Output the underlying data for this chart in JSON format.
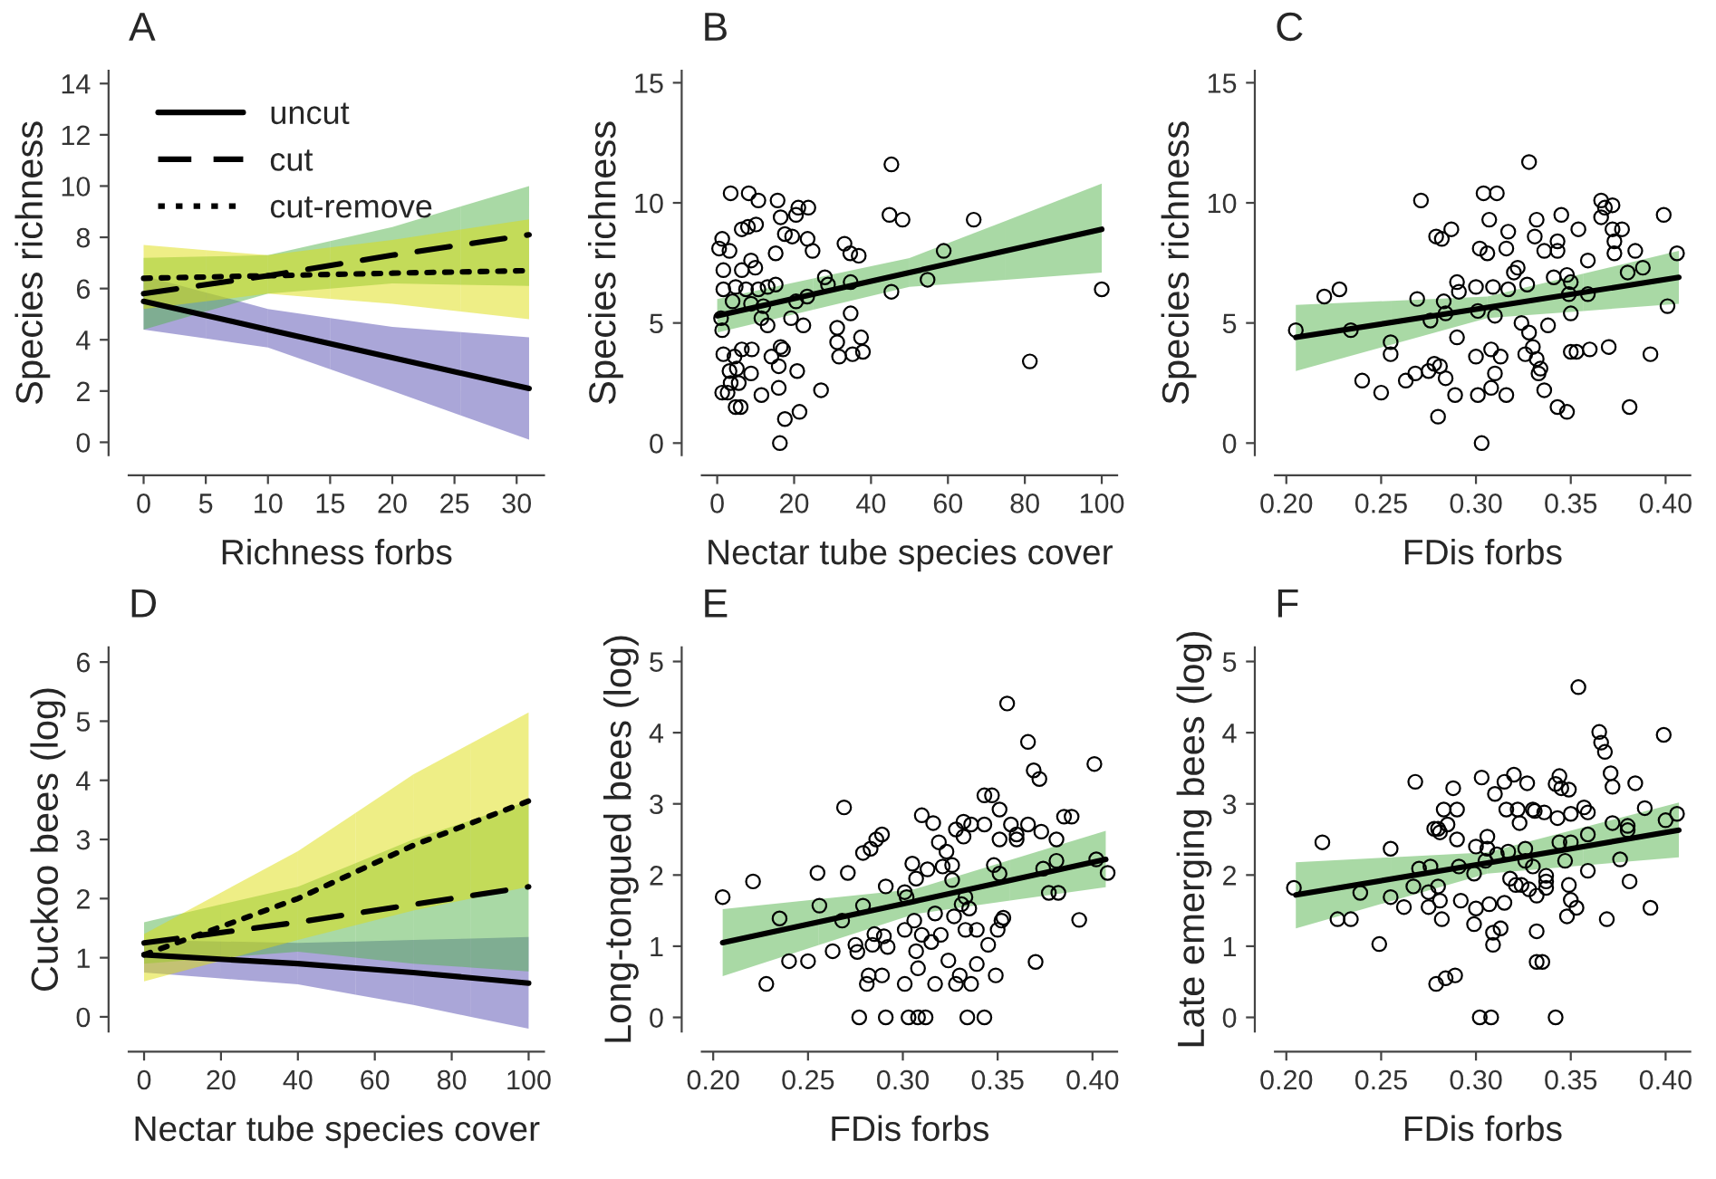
{
  "chart_data": [
    {
      "type": "line",
      "title": "A",
      "xlabel": "Richness forbs",
      "ylabel": "Species richness",
      "xlim": [
        -1.2,
        32.2
      ],
      "xticks": [
        0,
        5,
        10,
        15,
        20,
        25,
        30
      ],
      "ylim": [
        -0.5,
        14.5
      ],
      "yticks": [
        0,
        2,
        4,
        6,
        8,
        10,
        12,
        14
      ],
      "grid": false,
      "legend": "top left",
      "series": [
        {
          "name": "uncut",
          "line_style": "solid",
          "color": "#000000",
          "colors": [
            "#554db1",
            "#554db1",
            "#554db1",
            "#554db1"
          ],
          "x": [
            0,
            10,
            20,
            31
          ],
          "values": [
            5.5,
            4.4,
            3.3,
            2.1
          ],
          "lower": [
            4.4,
            3.7,
            2.0,
            0.1
          ],
          "upper": [
            6.5,
            5.2,
            4.5,
            4.1
          ]
        },
        {
          "name": "cut",
          "line_style": "dashed",
          "color": "#000000",
          "colors": [
            "#53b34b",
            "#53b34b",
            "#53b34b",
            "#53b34b"
          ],
          "x": [
            0,
            10,
            20,
            31
          ],
          "values": [
            5.8,
            6.5,
            7.3,
            8.1
          ],
          "lower": [
            4.4,
            5.8,
            6.2,
            6.1
          ],
          "upper": [
            7.2,
            7.3,
            8.4,
            10.0
          ]
        },
        {
          "name": "cut-remove",
          "line_style": "dotted",
          "color": "#000000",
          "colors": [
            "#dddd0d",
            "#dddd0d",
            "#dddd0d",
            "#dddd0d"
          ],
          "x": [
            0,
            10,
            20,
            31
          ],
          "values": [
            6.4,
            6.5,
            6.6,
            6.7
          ],
          "lower": [
            5.2,
            5.8,
            5.4,
            4.8
          ],
          "upper": [
            7.7,
            7.3,
            7.9,
            8.7
          ]
        }
      ]
    },
    {
      "type": "scatter",
      "title": "B",
      "xlabel": "Nectar tube species cover",
      "ylabel": "Species richness",
      "xlim": [
        -4,
        104
      ],
      "xticks": [
        0,
        20,
        40,
        60,
        80,
        100
      ],
      "ylim": [
        -0.5,
        15.5
      ],
      "yticks": [
        0,
        5,
        10,
        15
      ],
      "grid": false,
      "series": [
        {
          "type": "scatter",
          "marker": "circle",
          "color": "#000000",
          "x": [
            3.5,
            8.2,
            10.7,
            15.7,
            21.1,
            23.7,
            20.5,
            16.5,
            45.3,
            44.8,
            48.2,
            66.7,
            58.9,
            54.7,
            45.3,
            100,
            81.3,
            33.1,
            34.6,
            36.8,
            23.5,
            24.8,
            19.5,
            17.6,
            6.4,
            8,
            10.1,
            1.3,
            0.5,
            3.2,
            15.2,
            8.8,
            9.9,
            6.4,
            1.6,
            4.8,
            7.5,
            10.7,
            13.1,
            15.2,
            28,
            28.8,
            34.7,
            1.6,
            4,
            8.8,
            12,
            20.5,
            23.4,
            1,
            1.3,
            11.5,
            13.1,
            19.2,
            22.4,
            31.2,
            34.7,
            31.2,
            31.7,
            35.2,
            37.4,
            37.9,
            1.6,
            4.5,
            6.4,
            9,
            14.1,
            16.5,
            17.1,
            16,
            20.8,
            3.2,
            5.1,
            8.8,
            3.5,
            5.6,
            1.3,
            2.7,
            11.5,
            16,
            27,
            4.8,
            6.1,
            17.6,
            21.4,
            16.3
          ],
          "values": [
            10.4,
            10.4,
            10.1,
            10.1,
            9.8,
            9.8,
            9.5,
            9.4,
            11.6,
            9.5,
            9.3,
            9.3,
            8.0,
            6.8,
            6.3,
            6.4,
            3.4,
            8.3,
            7.9,
            7.8,
            8.5,
            8.0,
            8.6,
            8.7,
            8.9,
            9.0,
            9.1,
            8.5,
            8.1,
            8.0,
            7.9,
            7.6,
            7.3,
            7.2,
            7.2,
            6.5,
            6.4,
            6.4,
            6.5,
            6.6,
            6.9,
            6.6,
            6.7,
            6.4,
            5.9,
            5.8,
            5.7,
            5.9,
            6.1,
            5.2,
            4.7,
            5.2,
            4.9,
            5.2,
            4.9,
            4.8,
            5.4,
            4.2,
            3.6,
            3.7,
            4.4,
            3.8,
            3.7,
            3.6,
            3.9,
            3.9,
            3.6,
            4.0,
            3.9,
            3.2,
            3.0,
            3.0,
            3.1,
            2.9,
            2.5,
            2.5,
            2.1,
            2.1,
            2.0,
            2.3,
            2.2,
            1.5,
            1.5,
            1.0,
            1.3,
            0
          ]
        },
        {
          "type": "line",
          "line_style": "solid",
          "color": "#000000",
          "colors": [
            "#53b34b",
            "#53b34b",
            "#53b34b"
          ],
          "x": [
            0,
            50,
            100
          ],
          "values": [
            5.3,
            7.1,
            8.9
          ],
          "lower": [
            4.6,
            6.5,
            7.1
          ],
          "upper": [
            6.0,
            7.7,
            10.8
          ]
        }
      ]
    },
    {
      "type": "scatter",
      "title": "C",
      "xlabel": "FDis forbs",
      "ylabel": "Species richness",
      "xlim": [
        0.194,
        0.413
      ],
      "xticks": [
        {
          "value": 0.2,
          "label": "0.20"
        },
        {
          "value": 0.25,
          "label": "0.25"
        },
        {
          "value": 0.3,
          "label": "0.30"
        },
        {
          "value": 0.35,
          "label": "0.35"
        },
        {
          "value": 0.4,
          "label": "0.40"
        }
      ],
      "ylim": [
        -0.5,
        15.5
      ],
      "yticks": [
        0,
        5,
        10,
        15
      ],
      "grid": false,
      "series": [
        {
          "type": "scatter",
          "marker": "circle",
          "color": "#000000",
          "x": [
            0.205,
            0.22,
            0.228,
            0.234,
            0.24,
            0.25,
            0.255,
            0.255,
            0.263,
            0.268,
            0.269,
            0.271,
            0.275,
            0.276,
            0.278,
            0.281,
            0.28,
            0.279,
            0.282,
            0.287,
            0.283,
            0.284,
            0.289,
            0.29,
            0.29,
            0.291,
            0.284,
            0.3,
            0.302,
            0.301,
            0.3,
            0.301,
            0.303,
            0.304,
            0.311,
            0.307,
            0.306,
            0.308,
            0.308,
            0.31,
            0.309,
            0.31,
            0.313,
            0.317,
            0.316,
            0.316,
            0.317,
            0.32,
            0.322,
            0.324,
            0.326,
            0.327,
            0.328,
            0.328,
            0.33,
            0.332,
            0.331,
            0.332,
            0.333,
            0.334,
            0.336,
            0.336,
            0.338,
            0.341,
            0.343,
            0.343,
            0.345,
            0.343,
            0.348,
            0.348,
            0.349,
            0.35,
            0.35,
            0.35,
            0.353,
            0.354,
            0.359,
            0.36,
            0.359,
            0.366,
            0.368,
            0.372,
            0.366,
            0.37,
            0.372,
            0.373,
            0.373,
            0.377,
            0.38,
            0.381,
            0.384,
            0.388,
            0.392,
            0.399,
            0.401,
            0.406
          ],
          "values": [
            4.7,
            6.1,
            6.4,
            4.7,
            2.6,
            2.1,
            4.2,
            3.7,
            2.6,
            2.9,
            6.0,
            10.1,
            3.0,
            5.1,
            3.3,
            3.2,
            1.1,
            8.6,
            8.5,
            8.9,
            5.9,
            2.7,
            2.0,
            4.4,
            6.7,
            6.3,
            5.4,
            6.5,
            8.1,
            5.5,
            3.6,
            2.0,
            0,
            10.4,
            10.4,
            9.3,
            7.9,
            3.9,
            2.3,
            2.9,
            6.5,
            5.3,
            3.6,
            8.8,
            8.1,
            2.0,
            6.4,
            7.1,
            7.3,
            5.0,
            3.7,
            6.6,
            4.6,
            11.7,
            4.0,
            9.3,
            8.6,
            3.5,
            2.9,
            3.1,
            2.2,
            8.0,
            4.9,
            6.9,
            8.4,
            8.0,
            9.5,
            1.5,
            1.3,
            7.0,
            6.2,
            6.7,
            5.4,
            3.8,
            3.8,
            8.9,
            7.6,
            3.9,
            6.2,
            10.1,
            9.8,
            9.9,
            9.4,
            4.0,
            8.9,
            7.9,
            8.4,
            8.9,
            7.1,
            1.5,
            8.0,
            7.3,
            3.7,
            9.5,
            5.7,
            7.9
          ]
        },
        {
          "type": "line",
          "line_style": "solid",
          "color": "#000000",
          "colors": [
            "#53b34b",
            "#53b34b",
            "#53b34b"
          ],
          "x": [
            0.205,
            0.306,
            0.407
          ],
          "values": [
            4.4,
            5.65,
            6.9
          ],
          "lower": [
            3.0,
            5.2,
            5.8
          ],
          "upper": [
            5.75,
            6.1,
            8.0
          ]
        }
      ]
    },
    {
      "type": "line",
      "title": "D",
      "xlabel": "Nectar tube species cover",
      "ylabel": "Cuckoo bees (log)",
      "xlim": [
        -4,
        104
      ],
      "xticks": [
        0,
        20,
        40,
        60,
        80,
        100
      ],
      "ylim": [
        -0.25,
        6.25
      ],
      "yticks": [
        0,
        1,
        2,
        3,
        4,
        5,
        6
      ],
      "grid": false,
      "series": [
        {
          "line_style": "solid",
          "color": "#000000",
          "colors": [
            "#554db1",
            "#554db1",
            "#554db1",
            "#554db1"
          ],
          "x": [
            0,
            40,
            70,
            100
          ],
          "values": [
            1.05,
            0.9,
            0.75,
            0.57
          ],
          "lower": [
            0.75,
            0.55,
            0.2,
            -0.2
          ],
          "upper": [
            1.3,
            1.25,
            1.3,
            1.35
          ]
        },
        {
          "line_style": "dashed",
          "color": "#000000",
          "colors": [
            "#53b34b",
            "#53b34b",
            "#53b34b",
            "#53b34b"
          ],
          "x": [
            0,
            40,
            70,
            100
          ],
          "values": [
            1.25,
            1.6,
            1.9,
            2.2
          ],
          "lower": [
            0.9,
            1.1,
            0.9,
            0.77
          ],
          "upper": [
            1.6,
            2.2,
            3.0,
            3.65
          ]
        },
        {
          "line_style": "dotted",
          "color": "#000000",
          "colors": [
            "#dddd0d",
            "#dddd0d",
            "#dddd0d",
            "#dddd0d"
          ],
          "x": [
            0,
            40,
            70,
            100
          ],
          "values": [
            1.05,
            2.0,
            2.9,
            3.65
          ],
          "lower": [
            0.6,
            1.3,
            1.8,
            2.2
          ],
          "upper": [
            1.4,
            2.8,
            4.1,
            5.15
          ]
        }
      ]
    },
    {
      "type": "scatter",
      "title": "E",
      "xlabel": "FDis forbs",
      "ylabel": "Long-tongued bees (log)",
      "xlim": [
        0.194,
        0.413
      ],
      "xticks": [
        {
          "value": 0.2,
          "label": "0.20"
        },
        {
          "value": 0.25,
          "label": "0.25"
        },
        {
          "value": 0.3,
          "label": "0.30"
        },
        {
          "value": 0.35,
          "label": "0.35"
        },
        {
          "value": 0.4,
          "label": "0.40"
        }
      ],
      "ylim": [
        -0.2,
        5.2
      ],
      "yticks": [
        0,
        1,
        2,
        3,
        4,
        5
      ],
      "grid": false,
      "series": [
        {
          "type": "scatter",
          "marker": "circle",
          "color": "#000000",
          "x": [
            0.205,
            0.221,
            0.228,
            0.235,
            0.24,
            0.25,
            0.255,
            0.256,
            0.263,
            0.269,
            0.271,
            0.268,
            0.275,
            0.276,
            0.277,
            0.279,
            0.279,
            0.281,
            0.282,
            0.283,
            0.284,
            0.285,
            0.286,
            0.289,
            0.289,
            0.29,
            0.291,
            0.291,
            0.292,
            0.301,
            0.301,
            0.301,
            0.302,
            0.305,
            0.303,
            0.306,
            0.307,
            0.307,
            0.308,
            0.308,
            0.31,
            0.31,
            0.312,
            0.313,
            0.315,
            0.316,
            0.317,
            0.317,
            0.319,
            0.32,
            0.321,
            0.323,
            0.324,
            0.326,
            0.326,
            0.327,
            0.328,
            0.328,
            0.33,
            0.331,
            0.332,
            0.332,
            0.333,
            0.334,
            0.333,
            0.335,
            0.336,
            0.336,
            0.339,
            0.339,
            0.343,
            0.343,
            0.343,
            0.345,
            0.347,
            0.348,
            0.349,
            0.35,
            0.351,
            0.351,
            0.351,
            0.352,
            0.353,
            0.355,
            0.357,
            0.36,
            0.36,
            0.366,
            0.366,
            0.369,
            0.37,
            0.372,
            0.373,
            0.374,
            0.377,
            0.381,
            0.381,
            0.382,
            0.385,
            0.389,
            0.393,
            0.401,
            0.402,
            0.408
          ],
          "values": [
            1.69,
            1.91,
            0.47,
            1.39,
            0.79,
            0.79,
            2.03,
            1.57,
            0.93,
            2.95,
            2.03,
            1.36,
            1.02,
            0.92,
            0,
            1.57,
            2.31,
            0.47,
            0.59,
            2.37,
            1.02,
            1.17,
            2.5,
            2.57,
            0.59,
            1.14,
            0,
            1.84,
            0.99,
            0.47,
            1.23,
            1.76,
            1.69,
            2.16,
            0,
            1.36,
            0.93,
            1.95,
            0.69,
            0,
            2.84,
            1.16,
            0,
            2.08,
            1.06,
            2.73,
            1.46,
            0.47,
            2.46,
            1.16,
            2.12,
            2.33,
            0.8,
            2.14,
            1.93,
            1.42,
            0.47,
            2.64,
            0.59,
            1.59,
            2.75,
            2.54,
            1.23,
            0,
            1.69,
            1.53,
            0.47,
            2.71,
            1.23,
            0.75,
            3.12,
            2.71,
            0,
            1.02,
            3.12,
            2.14,
            0.59,
            1.23,
            2.92,
            2.02,
            2.5,
            1.36,
            1.4,
            4.41,
            2.71,
            2.57,
            2.5,
            3.87,
            2.71,
            3.47,
            0.78,
            3.35,
            2.61,
            2.09,
            1.75,
            2.2,
            2.5,
            1.75,
            2.82,
            2.82,
            1.37,
            3.56,
            2.22,
            2.03
          ]
        },
        {
          "type": "line",
          "line_style": "solid",
          "color": "#000000",
          "colors": [
            "#53b34b",
            "#53b34b",
            "#53b34b"
          ],
          "x": [
            0.205,
            0.306,
            0.407
          ],
          "values": [
            1.05,
            1.63,
            2.22
          ],
          "lower": [
            0.58,
            1.45,
            1.83
          ],
          "upper": [
            1.52,
            1.8,
            2.62
          ]
        }
      ]
    },
    {
      "type": "scatter",
      "title": "F",
      "xlabel": "FDis forbs",
      "ylabel": "Late emerging bees (log)",
      "xlim": [
        0.194,
        0.413
      ],
      "xticks": [
        {
          "value": 0.2,
          "label": "0.20"
        },
        {
          "value": 0.25,
          "label": "0.25"
        },
        {
          "value": 0.3,
          "label": "0.30"
        },
        {
          "value": 0.35,
          "label": "0.35"
        },
        {
          "value": 0.4,
          "label": "0.40"
        }
      ],
      "ylim": [
        -0.2,
        5.2
      ],
      "yticks": [
        0,
        1,
        2,
        3,
        4,
        5
      ],
      "grid": false,
      "series": [
        {
          "type": "scatter",
          "marker": "circle",
          "color": "#000000",
          "x": [
            0.204,
            0.219,
            0.227,
            0.234,
            0.239,
            0.249,
            0.255,
            0.255,
            0.262,
            0.268,
            0.267,
            0.27,
            0.275,
            0.275,
            0.276,
            0.278,
            0.279,
            0.28,
            0.28,
            0.281,
            0.281,
            0.282,
            0.283,
            0.284,
            0.285,
            0.288,
            0.289,
            0.29,
            0.29,
            0.291,
            0.292,
            0.299,
            0.299,
            0.3,
            0.3,
            0.302,
            0.303,
            0.305,
            0.306,
            0.306,
            0.307,
            0.308,
            0.309,
            0.309,
            0.31,
            0.311,
            0.313,
            0.315,
            0.315,
            0.316,
            0.317,
            0.318,
            0.32,
            0.321,
            0.322,
            0.323,
            0.324,
            0.326,
            0.326,
            0.327,
            0.328,
            0.33,
            0.33,
            0.331,
            0.332,
            0.332,
            0.332,
            0.335,
            0.336,
            0.337,
            0.337,
            0.337,
            0.342,
            0.342,
            0.343,
            0.344,
            0.345,
            0.344,
            0.347,
            0.348,
            0.349,
            0.349,
            0.35,
            0.35,
            0.35,
            0.353,
            0.354,
            0.357,
            0.359,
            0.359,
            0.359,
            0.365,
            0.366,
            0.368,
            0.369,
            0.371,
            0.372,
            0.372,
            0.376,
            0.38,
            0.38,
            0.381,
            0.384,
            0.389,
            0.392,
            0.399,
            0.4,
            0.406
          ],
          "values": [
            1.82,
            2.46,
            1.38,
            1.38,
            1.75,
            1.03,
            2.37,
            1.69,
            1.55,
            3.31,
            1.84,
            2.09,
            1.76,
            1.55,
            2.12,
            2.65,
            0.47,
            2.65,
            1.84,
            2.6,
            1.64,
            1.38,
            2.92,
            0.55,
            2.71,
            3.22,
            0.59,
            2.92,
            2.5,
            2.12,
            1.64,
            1.31,
            2.02,
            2.4,
            1.53,
            0,
            3.37,
            2.2,
            2.37,
            2.54,
            1.59,
            0,
            1.02,
            1.19,
            3.14,
            2.29,
            1.25,
            3.31,
            1.61,
            2.92,
            2.33,
            1.95,
            3.41,
            1.86,
            2.92,
            2.73,
            1.86,
            2.37,
            2.2,
            3.29,
            1.8,
            2.92,
            2.12,
            2.9,
            1.71,
            1.21,
            0.78,
            0.78,
            2.88,
            1.99,
            1.91,
            1.82,
            3.28,
            0,
            2.8,
            3.39,
            3.22,
            2.46,
            2.2,
            1.42,
            3.2,
            1.86,
            2.86,
            2.46,
            1.65,
            1.54,
            4.64,
            2.95,
            2.88,
            2.06,
            2.57,
            4.01,
            3.86,
            3.73,
            1.38,
            3.43,
            3.24,
            2.73,
            2.22,
            2.69,
            2.63,
            1.91,
            3.29,
            2.94,
            1.54,
            3.97,
            2.77,
            2.86
          ]
        },
        {
          "type": "line",
          "line_style": "solid",
          "color": "#000000",
          "colors": [
            "#53b34b",
            "#53b34b",
            "#53b34b"
          ],
          "x": [
            0.205,
            0.306,
            0.407
          ],
          "values": [
            1.72,
            2.17,
            2.63
          ],
          "lower": [
            1.25,
            2.02,
            2.25
          ],
          "upper": [
            2.18,
            2.32,
            3.02
          ]
        }
      ]
    }
  ]
}
